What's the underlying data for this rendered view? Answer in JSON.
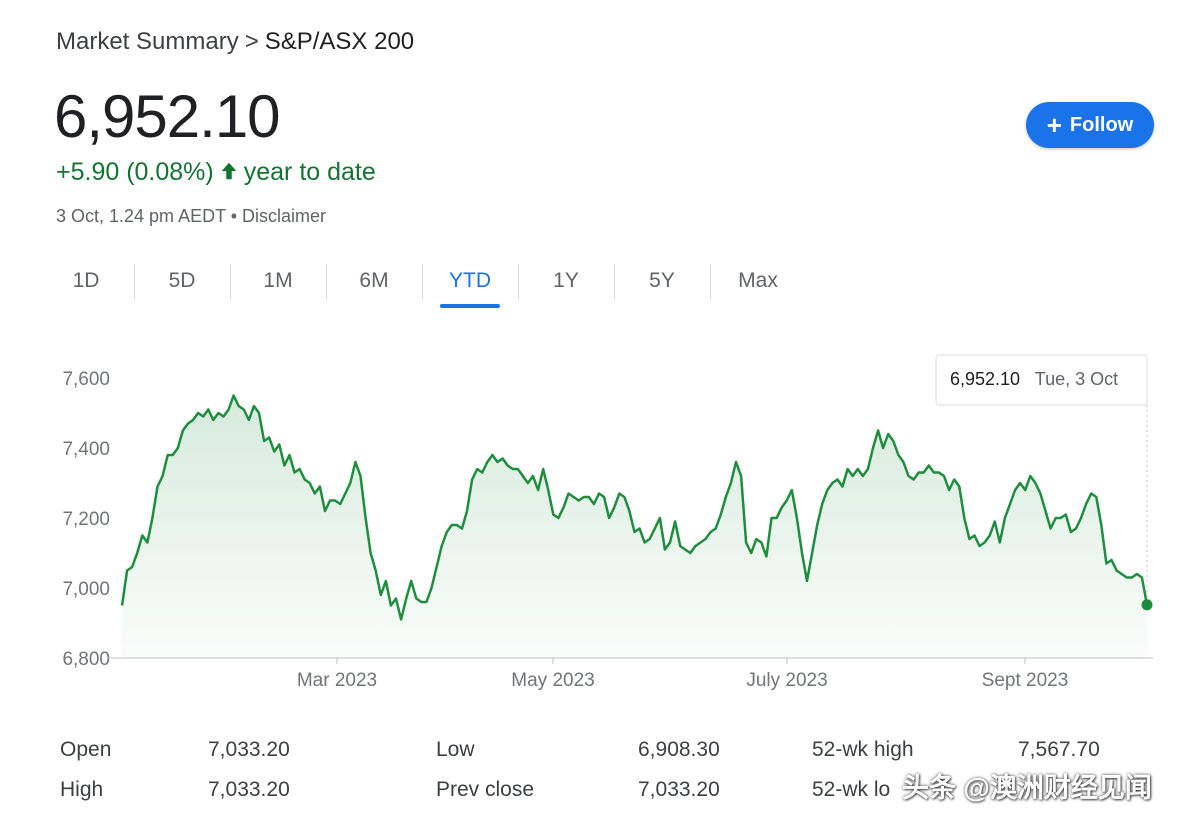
{
  "breadcrumb": {
    "parent": "Market Summary",
    "separator": ">",
    "current": "S&P/ASX 200"
  },
  "quote": {
    "price": "6,952.10",
    "change": "+5.90 (0.08%)",
    "period": "year to date",
    "timestamp": "3 Oct, 1.24 pm AEDT • Disclaimer"
  },
  "follow_button": {
    "label": "Follow",
    "icon": "plus-icon",
    "color": "#1a73e8"
  },
  "tabs": [
    {
      "label": "1D",
      "active": false
    },
    {
      "label": "5D",
      "active": false
    },
    {
      "label": "1M",
      "active": false
    },
    {
      "label": "6M",
      "active": false
    },
    {
      "label": "YTD",
      "active": true
    },
    {
      "label": "1Y",
      "active": false
    },
    {
      "label": "5Y",
      "active": false
    },
    {
      "label": "Max",
      "active": false
    }
  ],
  "tooltip": {
    "value": "6,952.10",
    "date": "Tue, 3 Oct"
  },
  "chart_data": {
    "type": "area",
    "line_color": "#1e8e3e",
    "ylim": [
      6800,
      7600
    ],
    "y_ticks": [
      "7,600",
      "7,400",
      "7,200",
      "7,000",
      "6,800"
    ],
    "x_ticks": [
      "Mar 2023",
      "May 2023",
      "July 2023",
      "Sept 2023"
    ],
    "grid": false,
    "series": [
      {
        "values": [
          6950,
          7050,
          7060,
          7100,
          7150,
          7130,
          7200,
          7290,
          7320,
          7380,
          7380,
          7400,
          7450,
          7470,
          7480,
          7500,
          7490,
          7510,
          7480,
          7500,
          7490,
          7510,
          7550,
          7520,
          7510,
          7480,
          7520,
          7500,
          7420,
          7430,
          7390,
          7410,
          7350,
          7380,
          7330,
          7340,
          7310,
          7300,
          7270,
          7290,
          7220,
          7250,
          7250,
          7240,
          7270,
          7300,
          7360,
          7320,
          7200,
          7100,
          7050,
          6980,
          7020,
          6950,
          6970,
          6910,
          6970,
          7020,
          6970,
          6960,
          6960,
          7000,
          7060,
          7120,
          7160,
          7180,
          7180,
          7170,
          7220,
          7310,
          7340,
          7330,
          7360,
          7380,
          7360,
          7370,
          7350,
          7340,
          7340,
          7320,
          7300,
          7320,
          7280,
          7340,
          7280,
          7210,
          7200,
          7230,
          7270,
          7260,
          7250,
          7260,
          7260,
          7240,
          7270,
          7260,
          7200,
          7230,
          7270,
          7260,
          7220,
          7160,
          7170,
          7130,
          7140,
          7170,
          7200,
          7110,
          7130,
          7190,
          7120,
          7110,
          7100,
          7120,
          7130,
          7140,
          7160,
          7170,
          7210,
          7260,
          7300,
          7360,
          7320,
          7130,
          7100,
          7140,
          7130,
          7090,
          7200,
          7200,
          7230,
          7250,
          7280,
          7200,
          7100,
          7020,
          7100,
          7180,
          7240,
          7280,
          7300,
          7310,
          7290,
          7340,
          7320,
          7340,
          7320,
          7340,
          7400,
          7450,
          7400,
          7440,
          7420,
          7380,
          7360,
          7320,
          7310,
          7330,
          7330,
          7350,
          7330,
          7330,
          7320,
          7280,
          7310,
          7290,
          7200,
          7140,
          7150,
          7120,
          7130,
          7150,
          7190,
          7130,
          7200,
          7240,
          7280,
          7300,
          7280,
          7320,
          7300,
          7270,
          7220,
          7170,
          7200,
          7200,
          7210,
          7160,
          7170,
          7200,
          7240,
          7270,
          7260,
          7180,
          7070,
          7080,
          7050,
          7040,
          7030,
          7030,
          7040,
          7030,
          6952
        ]
      }
    ]
  },
  "stats": [
    {
      "label": "Open",
      "value": "7,033.20"
    },
    {
      "label": "Low",
      "value": "6,908.30"
    },
    {
      "label": "52-wk high",
      "value": "7,567.70"
    },
    {
      "label": "High",
      "value": "7,033.20"
    },
    {
      "label": "Prev close",
      "value": "7,033.20"
    },
    {
      "label": "52-wk lo",
      "value": ""
    }
  ],
  "watermark": "头条 @澳洲财经见闻"
}
